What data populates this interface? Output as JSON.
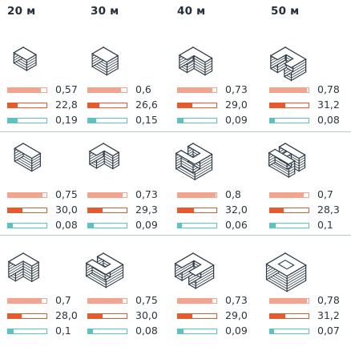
{
  "headers": [
    "20 м",
    "30 м",
    "40 м",
    "50 м"
  ],
  "colors": {
    "metric1": "#f3a48e",
    "metric2": "#e85a2c",
    "metric3": "#5bc3c2",
    "line": "#2c3a46",
    "divider": "#b9c6d2"
  },
  "rows": [
    [
      {
        "shape": "block-small",
        "m1": {
          "label": "0,57",
          "fill": 0.85
        },
        "m2": {
          "label": "22,8",
          "fill": 0.25
        },
        "m3": {
          "label": "0,19",
          "fill": 0.25
        }
      },
      {
        "shape": "block-stack",
        "m1": {
          "label": "0,6",
          "fill": 0.85
        },
        "m2": {
          "label": "26,6",
          "fill": 0.3
        },
        "m3": {
          "label": "0,15",
          "fill": 0.2
        }
      },
      {
        "shape": "l-shape-tall",
        "m1": {
          "label": "0,73",
          "fill": 0.9
        },
        "m2": {
          "label": "29,0",
          "fill": 0.38
        },
        "m3": {
          "label": "0,09",
          "fill": 0.14
        }
      },
      {
        "shape": "u-shape-tall",
        "m1": {
          "label": "0,78",
          "fill": 0.95
        },
        "m2": {
          "label": "31,2",
          "fill": 0.4
        },
        "m3": {
          "label": "0,08",
          "fill": 0.12
        }
      }
    ],
    [
      {
        "shape": "block-long",
        "m1": {
          "label": "0,75",
          "fill": 0.9
        },
        "m2": {
          "label": "30,0",
          "fill": 0.38
        },
        "m3": {
          "label": "0,08",
          "fill": 0.12
        }
      },
      {
        "shape": "l-shape",
        "m1": {
          "label": "0,73",
          "fill": 0.9
        },
        "m2": {
          "label": "29,3",
          "fill": 0.38
        },
        "m3": {
          "label": "0,09",
          "fill": 0.14
        }
      },
      {
        "shape": "u-shape-courtyard",
        "m1": {
          "label": "0,8",
          "fill": 0.97
        },
        "m2": {
          "label": "32,0",
          "fill": 0.42
        },
        "m3": {
          "label": "0,06",
          "fill": 0.1
        }
      },
      {
        "shape": "s-shape",
        "m1": {
          "label": "0,7",
          "fill": 0.88
        },
        "m2": {
          "label": "28,3",
          "fill": 0.36
        },
        "m3": {
          "label": "0,1",
          "fill": 0.15
        }
      }
    ],
    [
      {
        "shape": "l-shape-wide",
        "m1": {
          "label": "0,7",
          "fill": 0.88
        },
        "m2": {
          "label": "28,0",
          "fill": 0.36
        },
        "m3": {
          "label": "0,1",
          "fill": 0.15
        }
      },
      {
        "shape": "u-shape-open",
        "m1": {
          "label": "0,75",
          "fill": 0.9
        },
        "m2": {
          "label": "30,0",
          "fill": 0.38
        },
        "m3": {
          "label": "0,08",
          "fill": 0.12
        }
      },
      {
        "shape": "u-shape-wide",
        "m1": {
          "label": "0,73",
          "fill": 0.9
        },
        "m2": {
          "label": "29,0",
          "fill": 0.38
        },
        "m3": {
          "label": "0,09",
          "fill": 0.14
        }
      },
      {
        "shape": "ring",
        "m1": {
          "label": "0,78",
          "fill": 0.95
        },
        "m2": {
          "label": "31,2",
          "fill": 0.4
        },
        "m3": {
          "label": "0,07",
          "fill": 0.11
        }
      }
    ]
  ]
}
